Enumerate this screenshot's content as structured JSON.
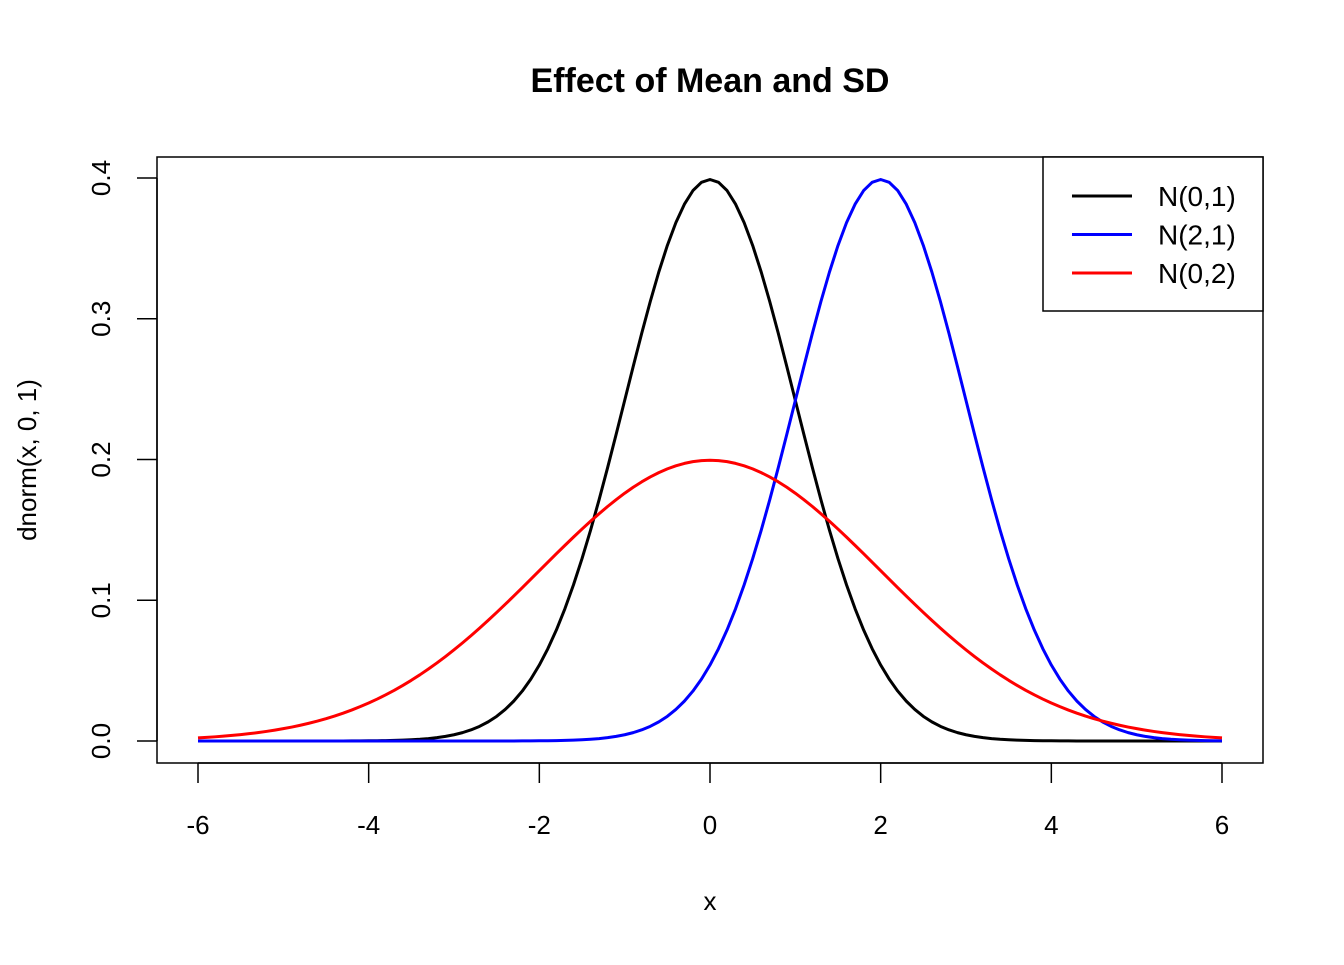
{
  "chart_data": {
    "type": "line",
    "title": "Effect of Mean and SD",
    "xlabel": "x",
    "ylabel": "dnorm(x, 0, 1)",
    "xlim": [
      -6,
      6
    ],
    "ylim": [
      0,
      0.4
    ],
    "x_step": 0.1,
    "grid": false,
    "xticks": [
      -6,
      -4,
      -2,
      0,
      2,
      4,
      6
    ],
    "xtick_labels": [
      "-6",
      "-4",
      "-2",
      "0",
      "2",
      "4",
      "6"
    ],
    "yticks": [
      0,
      0.1,
      0.2,
      0.3,
      0.4
    ],
    "ytick_labels": [
      "0.0",
      "0.1",
      "0.2",
      "0.3",
      "0.4"
    ],
    "legend_position": "top-right",
    "series": [
      {
        "name": "N(0,1)",
        "mean": 0,
        "sd": 1,
        "color": "#000000"
      },
      {
        "name": "N(2,1)",
        "mean": 2,
        "sd": 1,
        "color": "#0000FF"
      },
      {
        "name": "N(0,2)",
        "mean": 0,
        "sd": 2,
        "color": "#FF0000"
      }
    ]
  }
}
